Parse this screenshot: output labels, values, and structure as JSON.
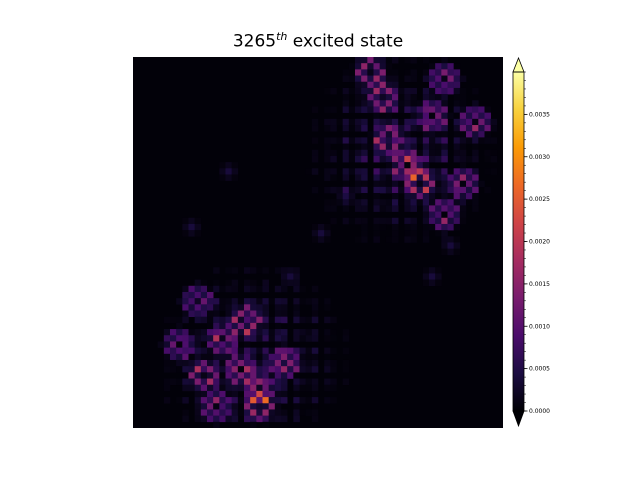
{
  "chart_data": {
    "type": "heatmap",
    "title": {
      "number": "3265",
      "superscript": "th",
      "suffix": " excited state"
    },
    "colormap": "magma",
    "colormap_stops": [
      "#000004",
      "#1b0c41",
      "#4a0c6b",
      "#781c6d",
      "#a52c60",
      "#cf4446",
      "#ed6925",
      "#fb9b06",
      "#f7d13d",
      "#fcffa4"
    ],
    "value_range": [
      0.0,
      0.004
    ],
    "colorbar_extend": "both",
    "colorbar_ticks": [
      0.0,
      0.0005,
      0.001,
      0.0015,
      0.002,
      0.0025,
      0.003,
      0.0035
    ],
    "colorbar_tick_labels": [
      "0.0000",
      "0.0005",
      "0.0010",
      "0.0015",
      "0.0020",
      "0.0025",
      "0.0030",
      "0.0035"
    ],
    "grid": false,
    "axes_visible": false,
    "grid_size": [
      60,
      60
    ],
    "clusters": [
      {
        "center": [
          19,
          48
        ],
        "peak": 0.0028,
        "sites": [
          [
            7,
            46
          ],
          [
            14,
            45
          ],
          [
            11,
            51
          ],
          [
            17,
            50
          ],
          [
            20,
            53
          ],
          [
            24,
            49
          ],
          [
            20,
            56
          ],
          [
            13,
            56
          ],
          [
            10,
            39
          ],
          [
            18,
            42
          ]
        ]
      },
      {
        "center": [
          43,
          15
        ],
        "peak": 0.0029,
        "sites": [
          [
            40,
            6
          ],
          [
            48,
            9
          ],
          [
            41,
            13
          ],
          [
            44,
            17
          ],
          [
            46,
            20
          ],
          [
            53,
            20
          ],
          [
            50,
            25
          ],
          [
            38,
            2
          ],
          [
            55,
            10
          ],
          [
            50,
            3
          ]
        ]
      }
    ],
    "scattered_sites": [
      [
        30,
        28
      ],
      [
        34,
        22
      ],
      [
        15,
        18
      ],
      [
        48,
        35
      ],
      [
        51,
        30
      ],
      [
        25,
        35
      ],
      [
        9,
        27
      ]
    ]
  }
}
